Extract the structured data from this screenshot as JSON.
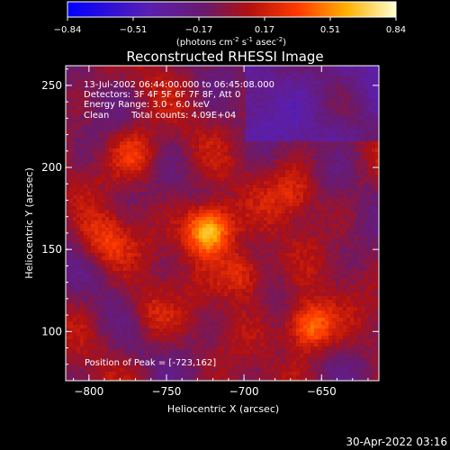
{
  "chart_data": {
    "type": "heatmap",
    "title": "Reconstructed RHESSI Image",
    "xlabel": "Heliocentric X (arcsec)",
    "ylabel": "Heliocentric Y (arcsec)",
    "xlim": [
      -815,
      -613
    ],
    "ylim": [
      70,
      262
    ],
    "xticks": [
      -800,
      -750,
      -700,
      -650
    ],
    "yticks": [
      100,
      150,
      200,
      250
    ],
    "colorbar": {
      "ticks": [
        "-0.84",
        "-0.51",
        "-0.17",
        "0.17",
        "0.51",
        "0.84"
      ],
      "range": [
        -0.84,
        0.84
      ],
      "label": "(photons cm",
      "label_sup1": "-2",
      "label_mid1": " s",
      "label_sup2": "-1",
      "label_mid2": " asec",
      "label_sup3": "-2",
      "label_end": ")"
    },
    "sources": [
      {
        "x": -723,
        "y": 162,
        "peak": 0.84
      },
      {
        "x": -658,
        "y": 103,
        "peak": 0.65
      },
      {
        "x": -700,
        "y": 135,
        "peak": 0.42
      },
      {
        "x": -770,
        "y": 208,
        "peak": 0.38
      },
      {
        "x": -790,
        "y": 155,
        "peak": 0.32
      },
      {
        "x": -668,
        "y": 185,
        "peak": 0.3
      },
      {
        "x": -760,
        "y": 110,
        "peak": 0.22
      }
    ],
    "background": {
      "base": -0.05,
      "min": -0.4
    },
    "annotations": {
      "time_range": "13-Jul-2002 06:44:00.000 to 06:45:08.000",
      "detectors": "Detectors: 3F 4F 5F 6F 7F 8F, Att 0",
      "energy": "Energy Range: 3.0 - 6.0 keV",
      "method": "Clean",
      "counts": "Total counts: 4.09E+04",
      "peak": "Position of Peak = [-723,162]"
    },
    "timestamp": "30-Apr-2022 03:16"
  }
}
